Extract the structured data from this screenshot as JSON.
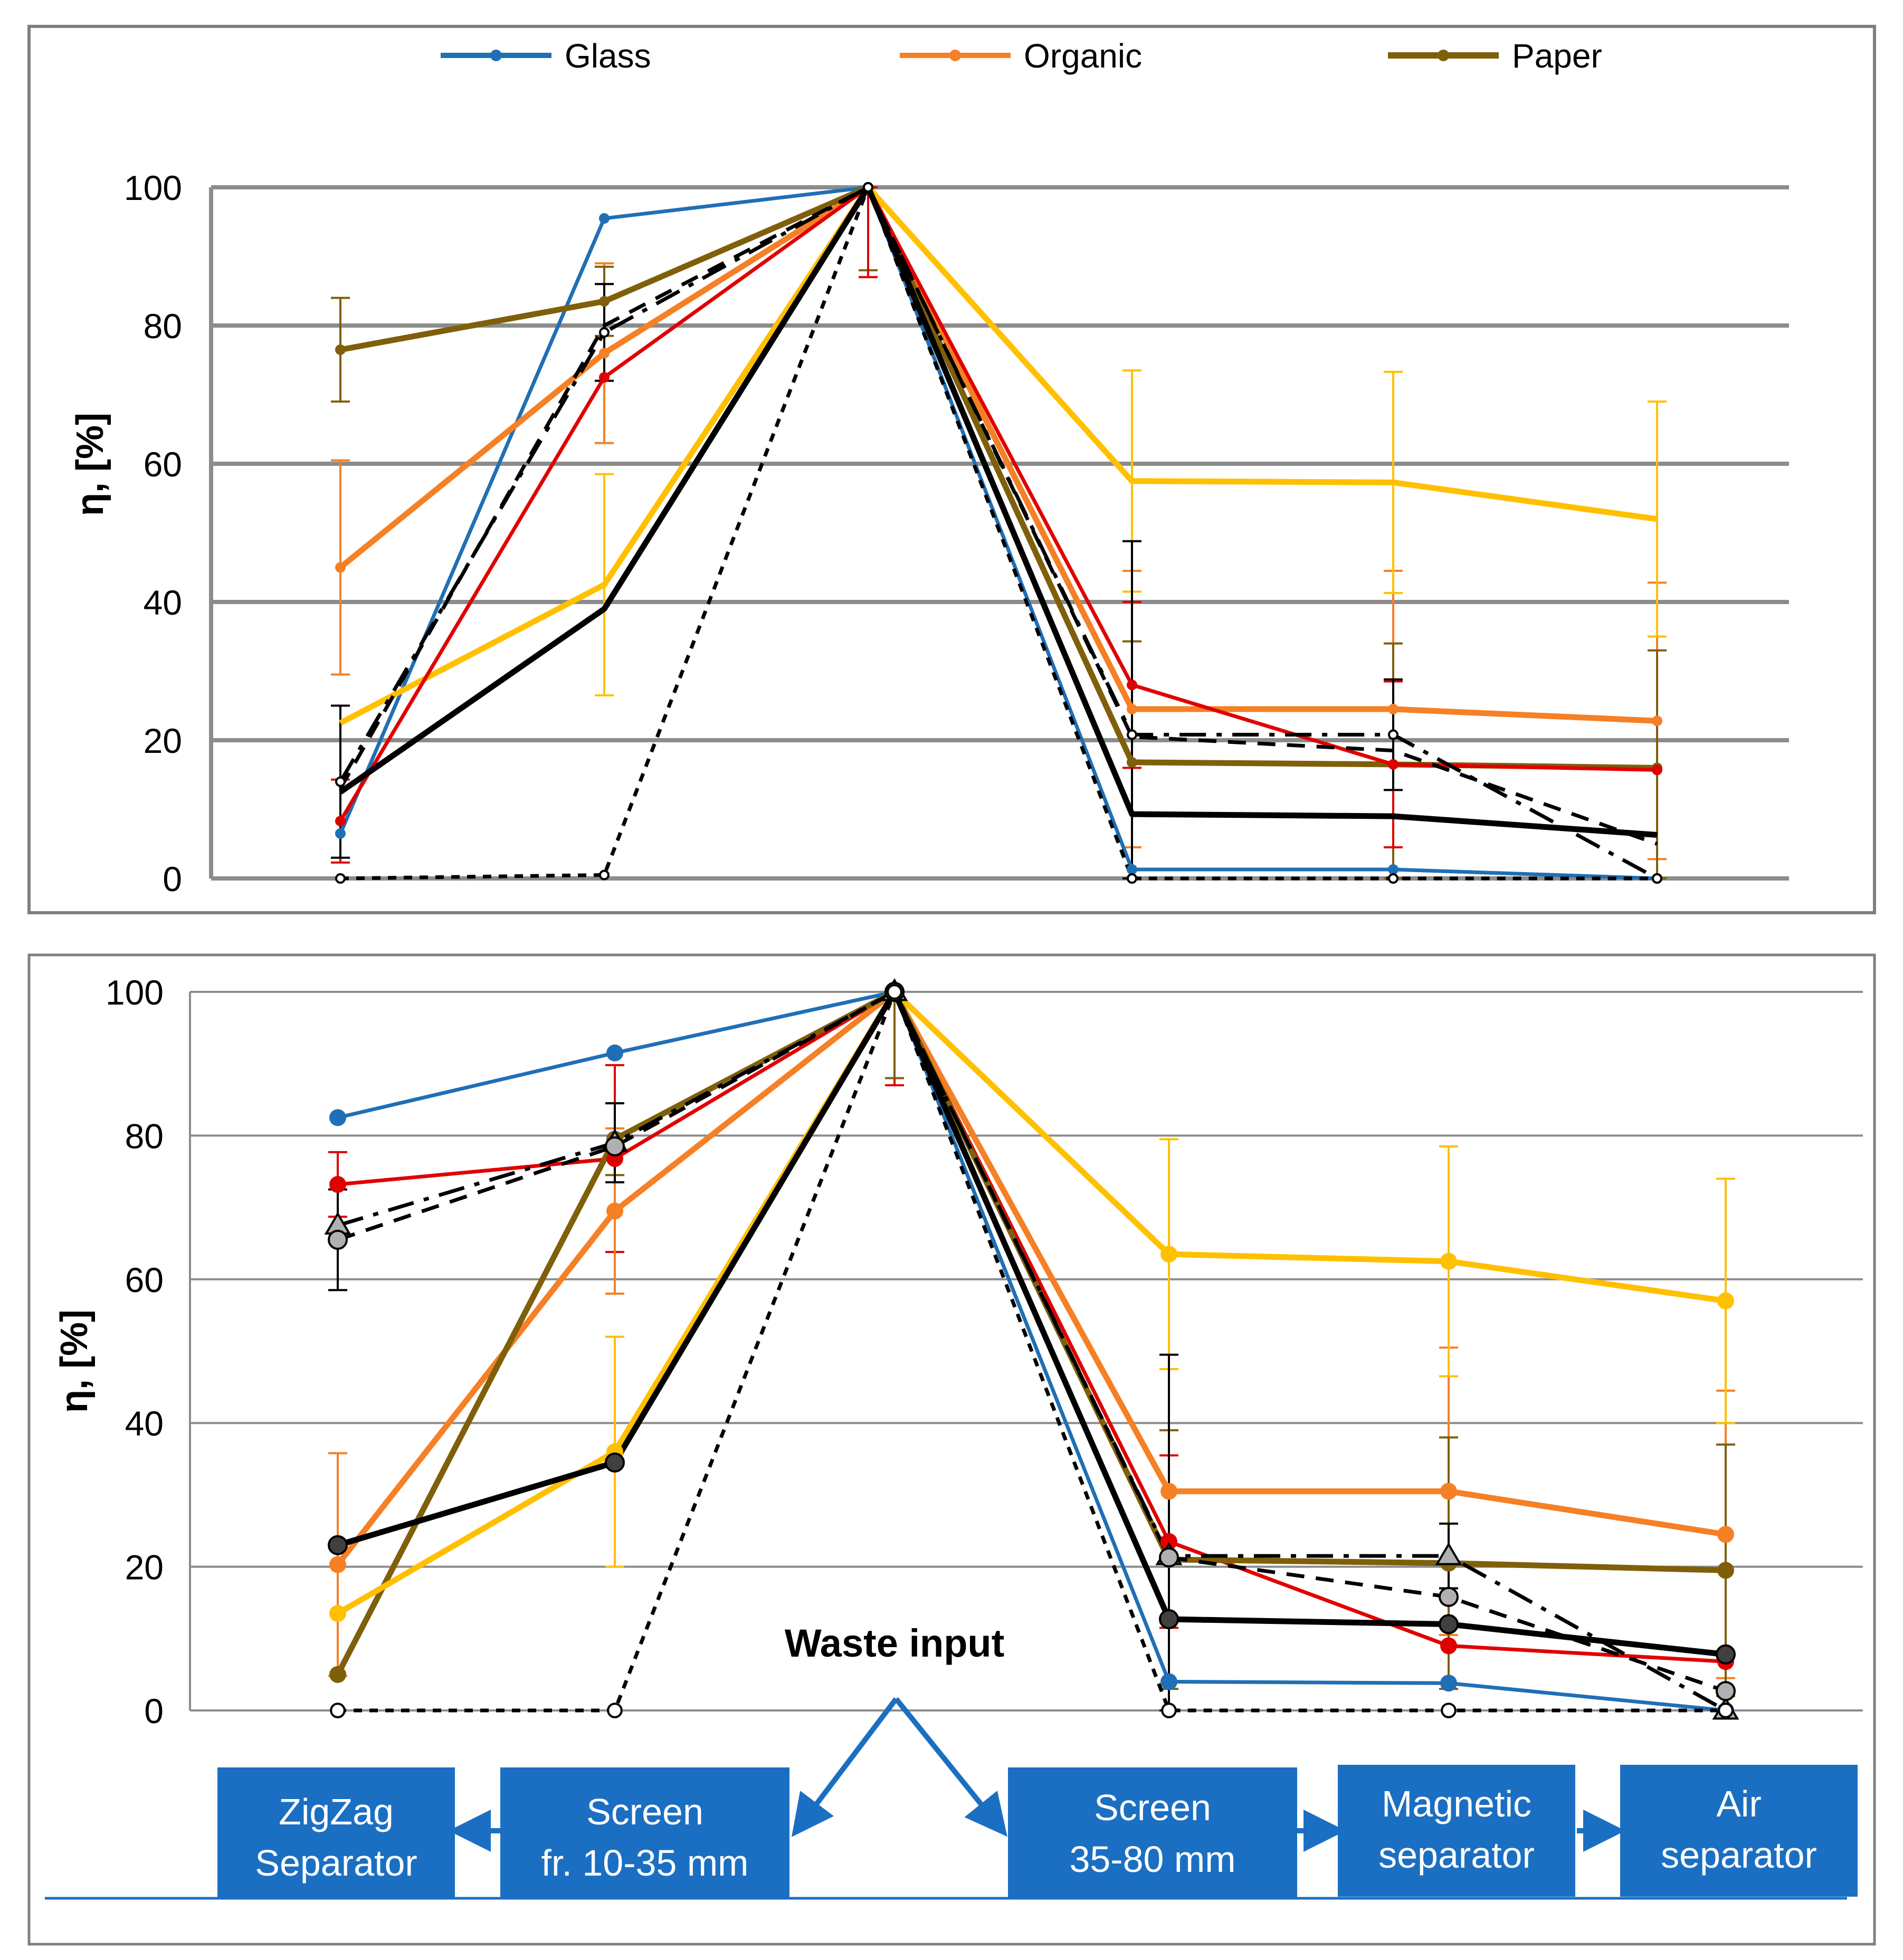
{
  "chart_data": [
    {
      "type": "line",
      "title": "",
      "xlabel": "",
      "ylabel": "η, [%]",
      "ylim": [
        0,
        100
      ],
      "yticks": [
        "0",
        "20",
        "40",
        "60",
        "80",
        "100"
      ],
      "grid": true,
      "legend_position": "top",
      "legend": [
        {
          "name": "Glass",
          "color": "#1f6fb6"
        },
        {
          "name": "Organic",
          "color": "#f58025"
        },
        {
          "name": "Paper",
          "color": "#7f5f0a"
        }
      ],
      "series": [
        {
          "name": "Glass",
          "color": "#1f6fb6",
          "values": [
            6.5,
            95.5,
            100,
            1.3,
            1.3,
            0
          ],
          "marker": "dot"
        },
        {
          "name": "Organic",
          "color": "#f58025",
          "values": [
            45,
            76,
            100,
            24.5,
            24.5,
            22.8
          ],
          "marker": "dot",
          "err": [
            15.5,
            13,
            13,
            20,
            20,
            20
          ]
        },
        {
          "name": "Paper",
          "color": "#7f5f0a",
          "values": [
            76.5,
            83.5,
            100,
            16.8,
            16.5,
            16
          ],
          "marker": "dot",
          "err": [
            7.5,
            5,
            12,
            17.5,
            17.5,
            17
          ]
        },
        {
          "name": "",
          "color": "#ffc000",
          "values": [
            22.5,
            42.5,
            100,
            57.5,
            57.3,
            52
          ],
          "marker": "none",
          "err": [
            0,
            16,
            0,
            16,
            16,
            17
          ]
        },
        {
          "name": "",
          "color": "#e00000",
          "values": [
            8.3,
            72.5,
            100,
            28,
            16.5,
            15.7
          ],
          "marker": "dot",
          "err": [
            6,
            0,
            13,
            12,
            12,
            0
          ]
        },
        {
          "name": "",
          "color": "#000000",
          "values": [
            12.5,
            39,
            100,
            9.3,
            9,
            6.3
          ],
          "marker": "none"
        },
        {
          "name": "",
          "color": "#000000",
          "values": [
            14,
            79,
            100,
            20.8,
            20.8,
            0
          ],
          "marker": "ring",
          "dash": "dashdot",
          "err": [
            11,
            7,
            0,
            28,
            8,
            0
          ]
        },
        {
          "name": "",
          "color": "#000000",
          "values": [
            13,
            80,
            100,
            20.5,
            18.5,
            5
          ],
          "marker": "none",
          "dash": "dash"
        },
        {
          "name": "",
          "color": "#000000",
          "values": [
            0,
            0.5,
            100,
            0,
            0,
            0
          ],
          "marker": "ring",
          "dash": "shortdash"
        }
      ]
    },
    {
      "type": "line",
      "title": "",
      "xlabel": "",
      "ylabel": "η, [%]",
      "ylim": [
        0,
        100
      ],
      "yticks": [
        "0",
        "20",
        "40",
        "60",
        "80",
        "100"
      ],
      "grid": true,
      "annotation": "Waste input",
      "series": [
        {
          "name": "",
          "color": "#1f6fb6",
          "values": [
            82.5,
            91.5,
            100,
            4,
            3.8,
            0
          ],
          "marker": "dot"
        },
        {
          "name": "",
          "color": "#e00000",
          "values": [
            73.2,
            76.8,
            100,
            23.5,
            9,
            6.8
          ],
          "marker": "dot",
          "err": [
            4.5,
            13,
            13,
            12,
            0,
            0
          ]
        },
        {
          "name": "",
          "color": "#f58025",
          "values": [
            20.3,
            69.5,
            100,
            30.5,
            30.5,
            24.5
          ],
          "marker": "dot",
          "err": [
            15.5,
            11.5,
            0,
            0,
            20,
            20
          ]
        },
        {
          "name": "",
          "color": "#7f5f0a",
          "values": [
            5,
            79.5,
            100,
            21,
            20.5,
            19.5
          ],
          "marker": "dot",
          "err": [
            0,
            5,
            12,
            18,
            17.5,
            17.5
          ]
        },
        {
          "name": "",
          "color": "#ffc000",
          "values": [
            13.5,
            36,
            100,
            63.5,
            62.5,
            57
          ],
          "marker": "dot",
          "err": [
            0,
            16,
            0,
            16,
            16,
            17
          ]
        },
        {
          "name": "",
          "color": "#000000",
          "values": [
            23,
            34.5,
            100,
            12.7,
            12,
            7.8
          ],
          "marker": "darkdot"
        },
        {
          "name": "",
          "color": "#000000",
          "values": [
            67.5,
            79,
            100,
            21.5,
            21.5,
            0
          ],
          "marker": "triangle",
          "dash": "dashdot",
          "err": [
            0,
            5.5,
            0,
            28,
            4.5,
            0
          ]
        },
        {
          "name": "",
          "color": "#000000",
          "values": [
            65.5,
            78.5,
            100,
            21.3,
            15.8,
            2.7
          ],
          "marker": "greydot",
          "dash": "dash",
          "err": [
            7,
            0,
            0,
            0,
            0,
            0
          ]
        },
        {
          "name": "",
          "color": "#000000",
          "values": [
            0,
            0,
            100,
            0,
            0,
            0
          ],
          "marker": "ring",
          "dash": "shortdash"
        }
      ]
    }
  ],
  "process": {
    "zigzag": [
      "ZigZag",
      "Separator"
    ],
    "screen_small": [
      "Screen",
      "fr. 10-35 mm"
    ],
    "screen_large": [
      "Screen",
      "35-80 mm"
    ],
    "magnetic": [
      "Magnetic",
      "separator"
    ],
    "air": [
      "Air",
      "separator"
    ],
    "box_color": "#1b6fc2",
    "arrow_color": "#1b6fc2"
  }
}
